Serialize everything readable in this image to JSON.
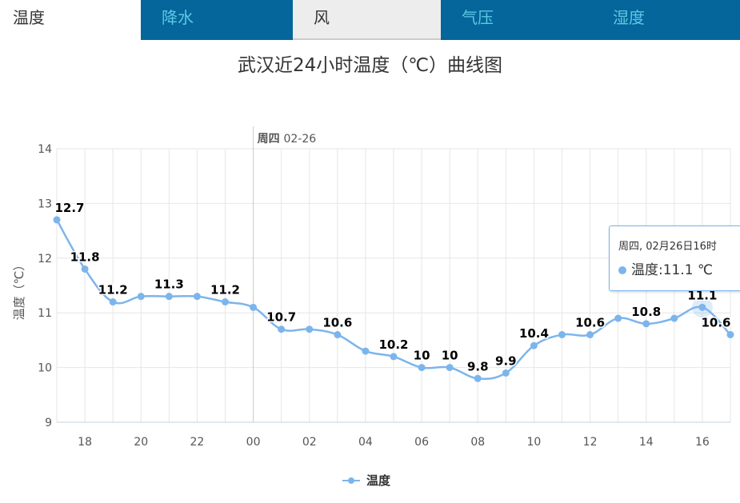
{
  "tabs": [
    {
      "label": "温度"
    },
    {
      "label": "降水"
    },
    {
      "label": "风"
    },
    {
      "label": "气压"
    },
    {
      "label": "湿度"
    }
  ],
  "chart_data": {
    "type": "line",
    "title": "武汉近24小时温度（℃）曲线图",
    "ylabel": "温度（℃）",
    "ylim": [
      9,
      14
    ],
    "yticks": [
      "9",
      "10",
      "11",
      "12",
      "13",
      "14"
    ],
    "xticks": [
      "18",
      "20",
      "22",
      "00",
      "02",
      "04",
      "06",
      "08",
      "10",
      "12",
      "14",
      "16"
    ],
    "x": [
      "17",
      "18",
      "19",
      "20",
      "21",
      "22",
      "23",
      "00",
      "01",
      "02",
      "03",
      "04",
      "05",
      "06",
      "07",
      "08",
      "09",
      "10",
      "11",
      "12",
      "13",
      "14",
      "15",
      "16",
      "17"
    ],
    "series": [
      {
        "name": "温度",
        "color": "#7cb5ec",
        "values": [
          12.7,
          11.8,
          11.2,
          11.3,
          11.3,
          11.3,
          11.2,
          11.1,
          10.7,
          10.7,
          10.6,
          10.3,
          10.2,
          10,
          10,
          9.8,
          9.9,
          10.4,
          10.6,
          10.6,
          10.9,
          10.8,
          10.9,
          11.1,
          10.6
        ]
      }
    ],
    "data_labels_shown": [
      true,
      true,
      true,
      false,
      true,
      false,
      true,
      false,
      true,
      false,
      true,
      false,
      true,
      true,
      true,
      true,
      true,
      true,
      false,
      true,
      false,
      true,
      false,
      true,
      true
    ],
    "day_marker": {
      "at": "00",
      "label_bold": "周四",
      "label": "02-26"
    },
    "grid": true,
    "legend": "bottom-center"
  },
  "tooltip": {
    "header": "周四, 02月26日16时",
    "series": "温度",
    "value": "11.1 ℃"
  }
}
